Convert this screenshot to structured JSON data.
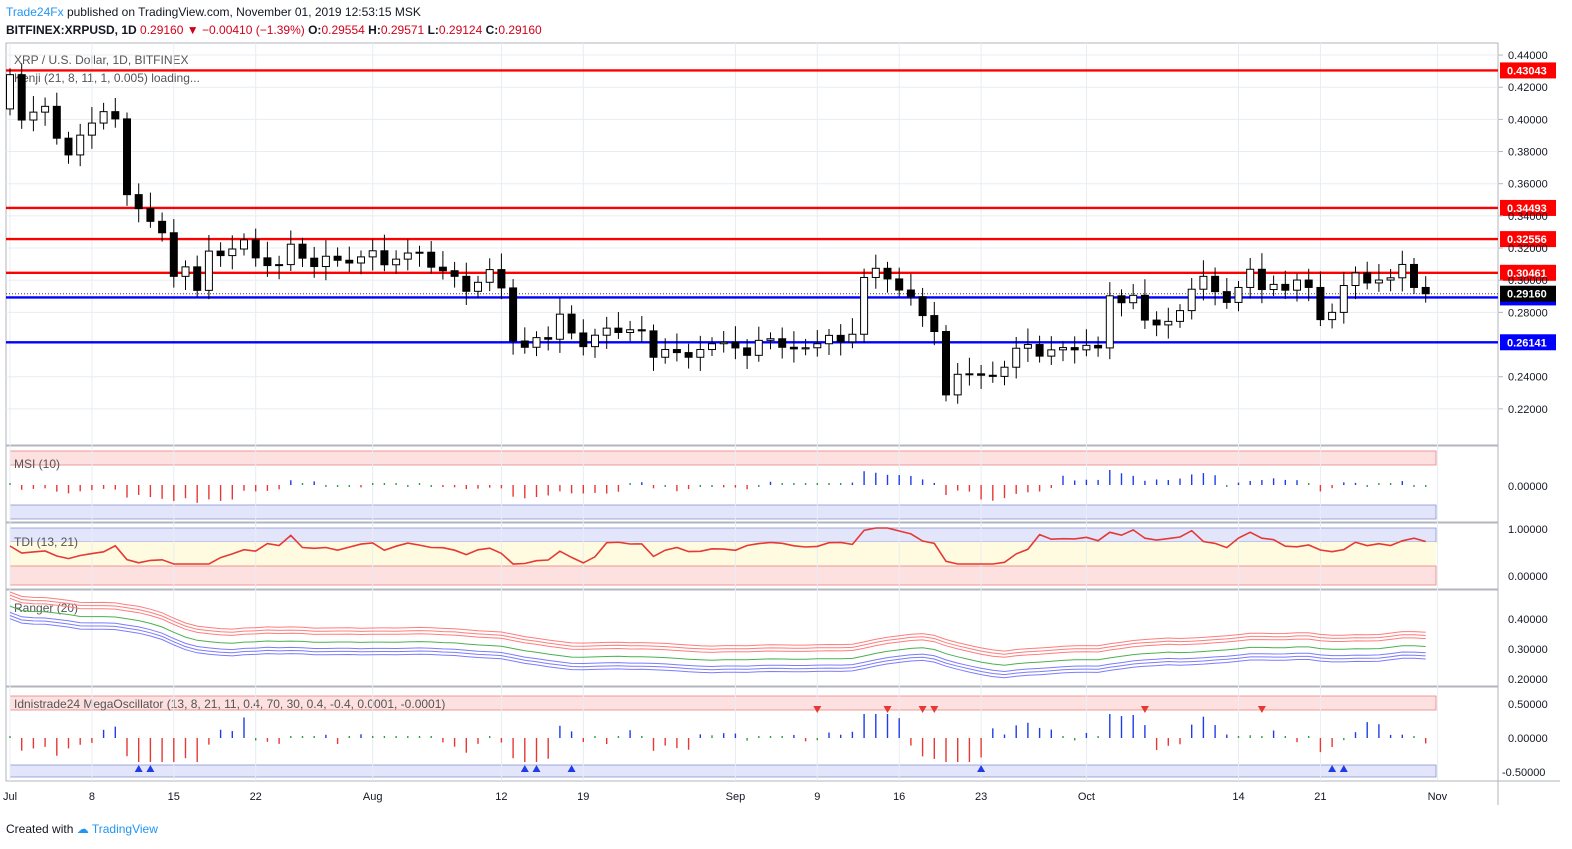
{
  "header": {
    "publisher": "Trade24Fx",
    "published_text": "published on TradingView.com, November 01, 2019 12:53:15 MSK",
    "symbol": "BITFINEX:XRPUSD, 1D",
    "last": "0.29160",
    "change": "−0.00410 (−1.39%)",
    "o_label": "O:",
    "o": "0.29554",
    "h_label": "H:",
    "h": "0.29571",
    "l_label": "L:",
    "l": "0.29124",
    "c_label": "C:",
    "c": "0.29160"
  },
  "footer": {
    "created_with": "Created with",
    "logo_text": "TradingView"
  },
  "colors": {
    "up": "#ffffff",
    "down": "#000000",
    "resistance": "#ff0000",
    "support": "#0000ff",
    "tdi": "#e53935",
    "grid": "#e8edf3",
    "price_tag": "#000000"
  },
  "chart_data": {
    "type": "candlestick",
    "title": "XRP / U.S. Dollar, 1D, BITFINEX",
    "indicator_overlay": "Kenji (21, 8, 11, 1, 0.005) loading...",
    "x_tick_labels": [
      "Jul",
      "8",
      "15",
      "22",
      "Aug",
      "12",
      "19",
      "Sep",
      "9",
      "16",
      "23",
      "Oct",
      "14",
      "21",
      "Nov"
    ],
    "y_tick_labels": [
      "0.44000",
      "0.42000",
      "0.40000",
      "0.38000",
      "0.36000",
      "0.34000",
      "0.32000",
      "0.30000",
      "0.28000",
      "0.24000",
      "0.22000"
    ],
    "ylim": [
      0.205,
      0.445
    ],
    "horizontal_levels": [
      {
        "value": 0.43043,
        "label": "0.43043",
        "kind": "resistance"
      },
      {
        "value": 0.34493,
        "label": "0.34493",
        "kind": "resistance"
      },
      {
        "value": 0.32556,
        "label": "0.32556",
        "kind": "resistance"
      },
      {
        "value": 0.30461,
        "label": "0.30461",
        "kind": "resistance"
      },
      {
        "value": 0.2893,
        "label": "0.28930",
        "kind": "support"
      },
      {
        "value": 0.26141,
        "label": "0.26141",
        "kind": "support"
      }
    ],
    "last_price_label": "0.29160",
    "last_price": 0.2916,
    "closes": [
      0.4278,
      0.3996,
      0.4045,
      0.4081,
      0.3883,
      0.3779,
      0.3902,
      0.3977,
      0.4048,
      0.4003,
      0.3532,
      0.3445,
      0.3366,
      0.3295,
      0.3024,
      0.3083,
      0.2937,
      0.3181,
      0.3153,
      0.3194,
      0.3251,
      0.3139,
      0.3091,
      0.3097,
      0.3224,
      0.3137,
      0.3085,
      0.3149,
      0.3124,
      0.3107,
      0.3145,
      0.3183,
      0.3096,
      0.3131,
      0.3169,
      0.3174,
      0.3081,
      0.3059,
      0.3024,
      0.2931,
      0.2987,
      0.3066,
      0.2952,
      0.2622,
      0.2583,
      0.2643,
      0.2633,
      0.2789,
      0.2672,
      0.2587,
      0.2658,
      0.2702,
      0.2675,
      0.2692,
      0.2685,
      0.2521,
      0.2569,
      0.255,
      0.2521,
      0.2569,
      0.2605,
      0.2614,
      0.2579,
      0.2533,
      0.2626,
      0.2636,
      0.2583,
      0.2573,
      0.258,
      0.2605,
      0.2657,
      0.2617,
      0.2664,
      0.3017,
      0.3074,
      0.3008,
      0.2939,
      0.2897,
      0.278,
      0.2681,
      0.2287,
      0.2415,
      0.2418,
      0.2409,
      0.2402,
      0.2459,
      0.2577,
      0.26,
      0.2528,
      0.2567,
      0.2581,
      0.2567,
      0.2595,
      0.2579,
      0.2903,
      0.286,
      0.2906,
      0.2752,
      0.2722,
      0.2744,
      0.2811,
      0.2944,
      0.3024,
      0.2929,
      0.2862,
      0.2955,
      0.3068,
      0.2942,
      0.2974,
      0.2938,
      0.3001,
      0.2955,
      0.2755,
      0.28,
      0.2967,
      0.3045,
      0.2983,
      0.3001,
      0.3015,
      0.3098,
      0.2955,
      0.2916
    ],
    "series": [
      {
        "name": "MSI (10)",
        "ylim": [
          -0.1,
          0.1
        ]
      },
      {
        "name": "TDI (13, 21)",
        "ylim": [
          -0.2,
          1.2
        ],
        "y_tick_labels": [
          "1.00000",
          "0.00000"
        ]
      },
      {
        "name": "Ranger (20)",
        "y_tick_labels": [
          "0.40000",
          "0.30000",
          "0.20000"
        ]
      },
      {
        "name": "Idnistrade24 MegaOscillator (13, 8, 21, 11, 0.4, 70, 30, 0.4, -0.4, 0.0001, -0.0001)",
        "y_tick_labels": [
          "0.50000",
          "0.00000",
          "-0.50000"
        ]
      }
    ],
    "msi_zero_label": "0.00000"
  }
}
